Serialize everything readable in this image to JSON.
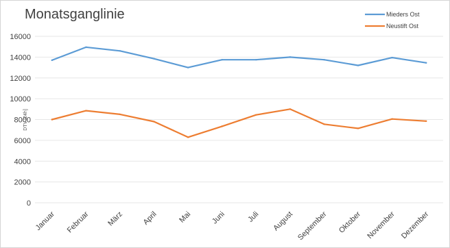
{
  "chart_data": {
    "type": "line",
    "title": "Monatsganglinie",
    "ylabel": "DTV [24h]",
    "xlabel": "",
    "ylim": [
      0,
      16000
    ],
    "yticks": [
      0,
      2000,
      4000,
      6000,
      8000,
      10000,
      12000,
      14000,
      16000
    ],
    "grid": true,
    "legend_position": "top-right",
    "categories": [
      "Januar",
      "Februar",
      "März",
      "April",
      "Mai",
      "Juni",
      "Juli",
      "August",
      "September",
      "Oktober",
      "November",
      "Dezember"
    ],
    "series": [
      {
        "name": "Mieders Ost",
        "color": "#5b9bd5",
        "values": [
          13700,
          14950,
          14600,
          13850,
          13000,
          13750,
          13750,
          14000,
          13750,
          13200,
          13950,
          13450
        ]
      },
      {
        "name": "Neustift Ost",
        "color": "#ed7d31",
        "values": [
          8000,
          8850,
          8500,
          7800,
          6300,
          7350,
          8450,
          9000,
          7550,
          7150,
          8050,
          7850
        ]
      }
    ]
  }
}
